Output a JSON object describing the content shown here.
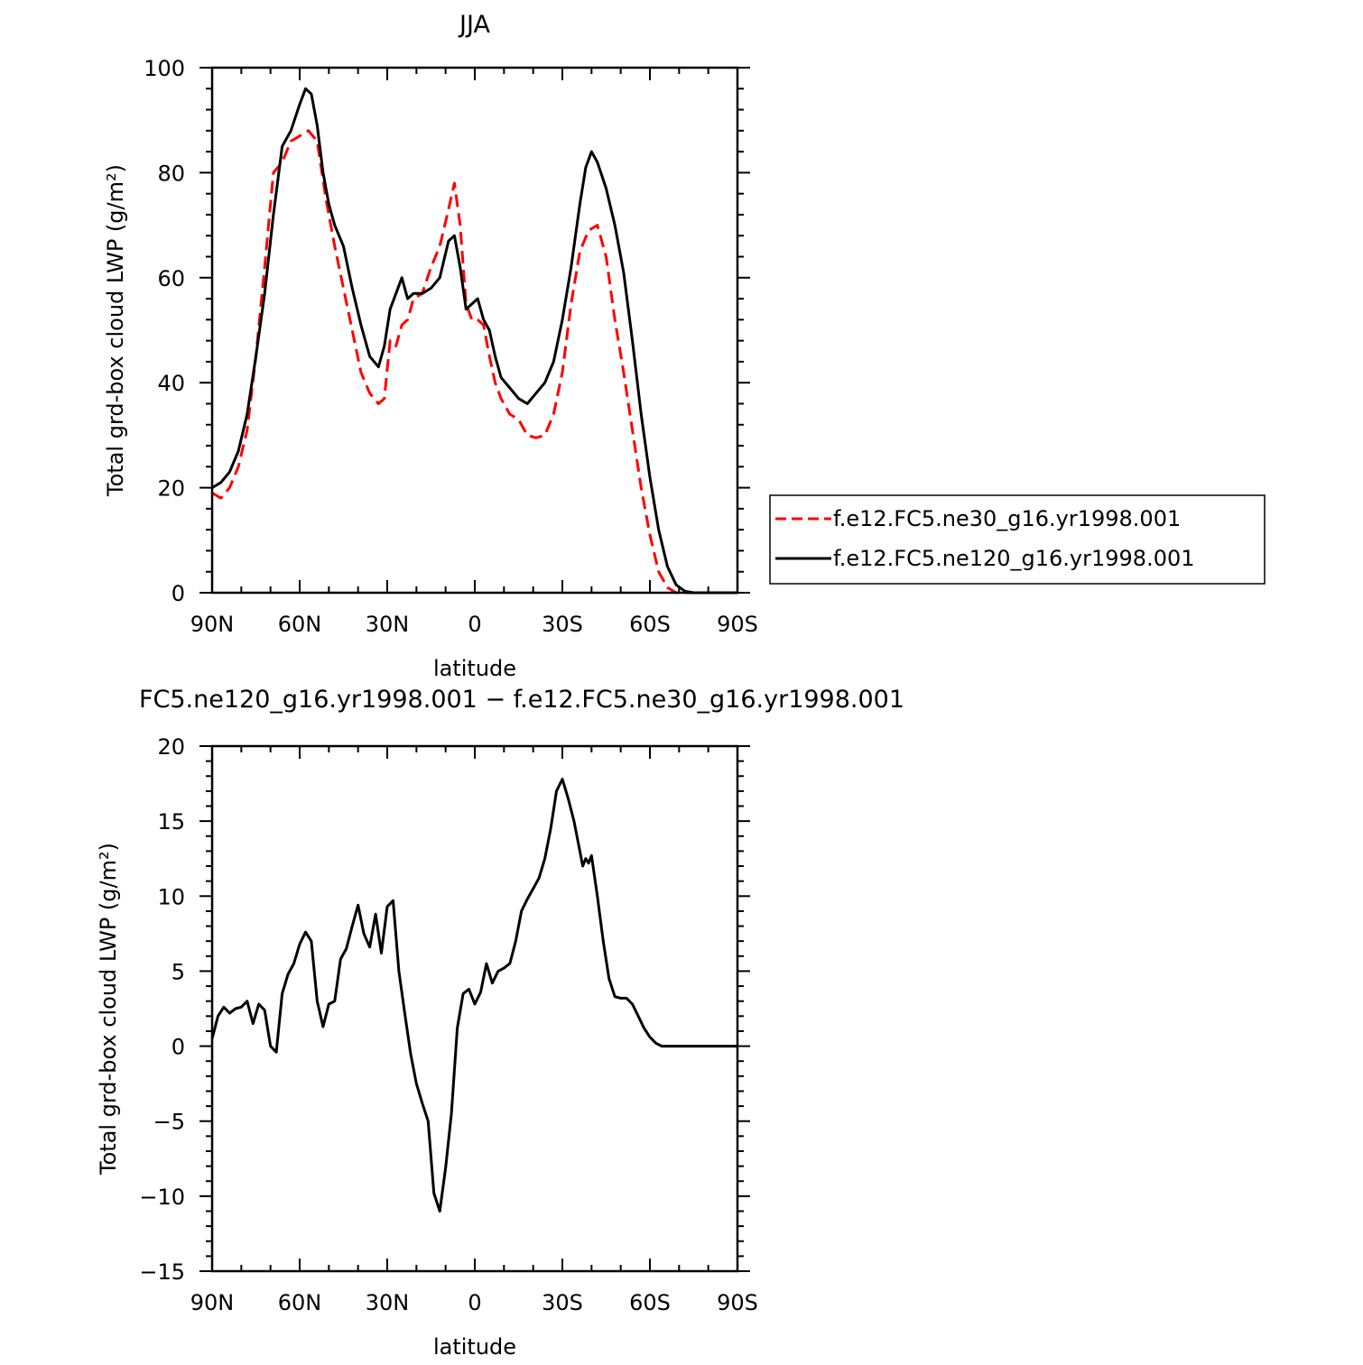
{
  "chart_data": [
    {
      "type": "line",
      "title": "JJA",
      "xlabel": "latitude",
      "ylabel": "Total grd-box cloud LWP (g/m²)",
      "xlim": [
        90,
        -90
      ],
      "ylim": [
        0,
        100
      ],
      "xticks": [
        {
          "value": 90,
          "label": "90N"
        },
        {
          "value": 60,
          "label": "60N"
        },
        {
          "value": 30,
          "label": "30N"
        },
        {
          "value": 0,
          "label": "0"
        },
        {
          "value": -30,
          "label": "30S"
        },
        {
          "value": -60,
          "label": "60S"
        },
        {
          "value": -90,
          "label": "90S"
        }
      ],
      "yticks": [
        {
          "value": 0,
          "label": "0"
        },
        {
          "value": 20,
          "label": "20"
        },
        {
          "value": 40,
          "label": "40"
        },
        {
          "value": 60,
          "label": "60"
        },
        {
          "value": 80,
          "label": "80"
        },
        {
          "value": 100,
          "label": "100"
        }
      ],
      "legend_position": "right",
      "series": [
        {
          "name": "f.e12.FC5.ne30_g16.yr1998.001",
          "color": "#ff0000",
          "dash": "dashed",
          "x": [
            90,
            87,
            84,
            81,
            78,
            75,
            72,
            69,
            66,
            63,
            60,
            57,
            54,
            51,
            48,
            45,
            42,
            39,
            36,
            33,
            31,
            29,
            27,
            25,
            23,
            21,
            18,
            15,
            12,
            9,
            7,
            5,
            3,
            1,
            -1,
            -3,
            -5,
            -7,
            -9,
            -12,
            -15,
            -18,
            -21,
            -24,
            -27,
            -30,
            -33,
            -36,
            -39,
            -42,
            -45,
            -48,
            -51,
            -54,
            -57,
            -60,
            -63,
            -66,
            -69,
            -72,
            -75,
            -78,
            -81,
            -84,
            -87,
            -90
          ],
          "y": [
            19,
            18,
            20,
            24,
            31,
            45,
            62,
            80,
            82,
            86,
            87,
            88,
            86,
            75,
            66,
            58,
            50,
            42,
            38,
            36,
            37,
            48,
            47,
            51,
            52,
            56,
            57,
            62,
            66,
            73,
            78,
            70,
            55,
            52,
            52,
            51,
            45,
            40,
            37,
            34,
            33,
            30,
            29.5,
            30,
            34,
            42,
            55,
            65,
            69,
            70,
            64,
            52,
            42,
            31,
            20,
            11,
            4,
            1,
            0,
            0,
            0,
            0,
            0,
            0,
            0,
            0
          ]
        },
        {
          "name": "f.e12.FC5.ne120_g16.yr1998.001",
          "color": "#000000",
          "dash": "solid",
          "x": [
            90,
            87,
            84,
            81,
            78,
            75,
            72,
            69,
            66,
            63,
            60,
            58,
            56,
            54,
            52,
            50,
            48,
            45,
            42,
            39,
            36,
            33,
            31,
            29,
            27,
            25,
            23,
            21,
            18,
            15,
            12,
            9,
            7,
            5,
            3,
            1,
            -1,
            -3,
            -5,
            -7,
            -9,
            -12,
            -15,
            -18,
            -21,
            -24,
            -27,
            -30,
            -33,
            -36,
            -38,
            -40,
            -42,
            -45,
            -48,
            -51,
            -54,
            -57,
            -60,
            -63,
            -66,
            -69,
            -72,
            -75,
            -78,
            -81,
            -84,
            -87,
            -90
          ],
          "y": [
            20,
            21,
            23,
            27,
            34,
            45,
            57,
            72,
            85,
            88,
            93,
            96,
            95,
            89,
            80,
            74,
            70,
            66,
            58,
            51,
            45,
            43,
            47,
            54,
            57,
            60,
            56,
            57,
            57,
            58,
            60,
            67,
            68,
            62,
            54,
            55,
            56,
            52,
            50,
            45,
            41,
            39,
            37,
            36,
            38,
            40,
            44,
            52,
            62,
            74,
            81,
            84,
            82,
            77,
            70,
            61,
            48,
            34,
            22,
            12,
            5,
            1.5,
            0.3,
            0,
            0,
            0,
            0,
            0,
            0
          ]
        }
      ]
    },
    {
      "type": "line",
      "title": "FC5.ne120_g16.yr1998.001 − f.e12.FC5.ne30_g16.yr1998.001",
      "xlabel": "latitude",
      "ylabel": "Total grd-box cloud LWP (g/m²)",
      "xlim": [
        90,
        -90
      ],
      "ylim": [
        -15,
        20
      ],
      "xticks": [
        {
          "value": 90,
          "label": "90N"
        },
        {
          "value": 60,
          "label": "60N"
        },
        {
          "value": 30,
          "label": "30N"
        },
        {
          "value": 0,
          "label": "0"
        },
        {
          "value": -30,
          "label": "30S"
        },
        {
          "value": -60,
          "label": "60S"
        },
        {
          "value": -90,
          "label": "90S"
        }
      ],
      "yticks": [
        {
          "value": -15,
          "label": "−15"
        },
        {
          "value": -10,
          "label": "−10"
        },
        {
          "value": -5,
          "label": "−5"
        },
        {
          "value": 0,
          "label": "0"
        },
        {
          "value": 5,
          "label": "5"
        },
        {
          "value": 10,
          "label": "10"
        },
        {
          "value": 15,
          "label": "15"
        },
        {
          "value": 20,
          "label": "20"
        }
      ],
      "series": [
        {
          "color": "#000000",
          "dash": "solid",
          "x": [
            90,
            88,
            86,
            84,
            82,
            80,
            78,
            76,
            74,
            72,
            70,
            68,
            66,
            64,
            62,
            60,
            58,
            56,
            54,
            52,
            50,
            48,
            46,
            44,
            42,
            40,
            38,
            36,
            34,
            32,
            30,
            28,
            26,
            24,
            22,
            20,
            18,
            16,
            14,
            12,
            10,
            8,
            6,
            4,
            2,
            0,
            -2,
            -4,
            -6,
            -8,
            -10,
            -12,
            -14,
            -16,
            -18,
            -20,
            -22,
            -24,
            -26,
            -28,
            -30,
            -32,
            -34,
            -36,
            -37,
            -38,
            -39,
            -40,
            -42,
            -44,
            -46,
            -48,
            -50,
            -52,
            -54,
            -56,
            -58,
            -60,
            -62,
            -64,
            -66,
            -68,
            -70,
            -72,
            -74,
            -76,
            -78,
            -80,
            -82,
            -84,
            -86,
            -88,
            -90
          ],
          "y": [
            0.5,
            2.0,
            2.6,
            2.2,
            2.5,
            2.6,
            3.0,
            1.5,
            2.8,
            2.4,
            0.0,
            -0.4,
            3.5,
            4.8,
            5.5,
            6.8,
            7.6,
            7.0,
            3.0,
            1.3,
            2.8,
            3.0,
            5.8,
            6.5,
            8.0,
            9.4,
            7.5,
            6.6,
            8.8,
            6.2,
            9.3,
            9.7,
            5.0,
            2.2,
            -0.5,
            -2.5,
            -3.8,
            -5.0,
            -9.8,
            -11.0,
            -8.1,
            -4.5,
            1.2,
            3.5,
            3.8,
            2.8,
            3.6,
            5.5,
            4.2,
            5.0,
            5.2,
            5.5,
            7.0,
            9.0,
            9.8,
            10.5,
            11.2,
            12.5,
            14.5,
            17.0,
            17.8,
            16.5,
            15.0,
            13.0,
            12.0,
            12.5,
            12.2,
            12.7,
            10.0,
            7.0,
            4.5,
            3.3,
            3.2,
            3.2,
            2.8,
            2.0,
            1.2,
            0.6,
            0.2,
            0.0,
            0.0,
            0.0,
            0.0,
            0.0,
            0.0,
            0.0,
            0.0,
            0.0,
            0.0,
            0.0,
            0.0,
            0.0,
            0.0
          ]
        }
      ]
    }
  ]
}
